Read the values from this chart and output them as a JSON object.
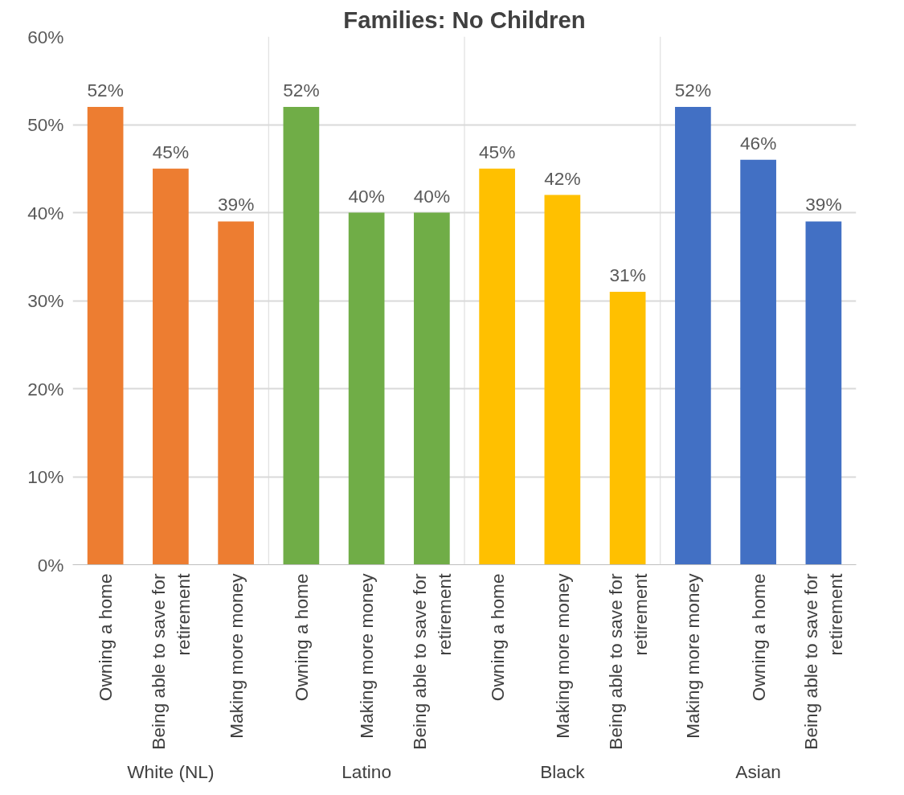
{
  "chart_data": {
    "type": "bar",
    "title": "Families: No Children",
    "categories": [
      "Owning a home",
      "Being able to save for retirement",
      "Making more money",
      "Owning a home",
      "Making more money",
      "Being able to save for retirement",
      "Owning a home",
      "Making more money",
      "Being able to save for retirement",
      "Making more money",
      "Owning a home",
      "Being able to save for retirement"
    ],
    "series": [
      {
        "color": "#ed7d31",
        "values": [
          52,
          45,
          39,
          null,
          null,
          null,
          null,
          null,
          null,
          null,
          null,
          null
        ],
        "value_labels": [
          "52%",
          "45%",
          "39%",
          null,
          null,
          null,
          null,
          null,
          null,
          null,
          null,
          null
        ]
      },
      {
        "color": "#70ad47",
        "values": [
          null,
          null,
          null,
          52,
          40,
          40,
          null,
          null,
          null,
          null,
          null,
          null
        ],
        "value_labels": [
          null,
          null,
          null,
          "52%",
          "40%",
          "40%",
          null,
          null,
          null,
          null,
          null,
          null
        ]
      },
      {
        "color": "#ffc000",
        "values": [
          null,
          null,
          null,
          null,
          null,
          null,
          45,
          42,
          31,
          null,
          null,
          null
        ],
        "value_labels": [
          null,
          null,
          null,
          null,
          null,
          null,
          "45%",
          "42%",
          "31%",
          null,
          null,
          null
        ]
      },
      {
        "color": "#4270c4",
        "values": [
          null,
          null,
          null,
          null,
          null,
          null,
          null,
          null,
          null,
          52,
          46,
          39
        ],
        "value_labels": [
          null,
          null,
          null,
          null,
          null,
          null,
          null,
          null,
          null,
          "52%",
          "46%",
          "39%"
        ]
      }
    ],
    "annotations": [
      "White (NL)",
      "Latino",
      "Black",
      "Asian"
    ],
    "ylim": [
      0,
      60
    ],
    "yticks": [
      {
        "value": 0,
        "label": "0%"
      },
      {
        "value": 10,
        "label": "10%"
      },
      {
        "value": 20,
        "label": "20%"
      },
      {
        "value": 30,
        "label": "30%"
      },
      {
        "value": 40,
        "label": "40%"
      },
      {
        "value": 50,
        "label": "50%"
      },
      {
        "value": 60,
        "label": "60%"
      }
    ],
    "grid": "y"
  }
}
